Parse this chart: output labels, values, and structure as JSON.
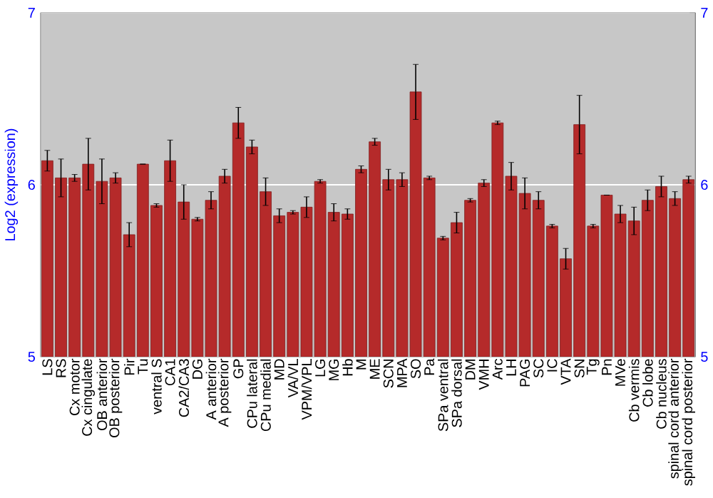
{
  "chart_data": {
    "type": "bar",
    "ylabel": "Log2 (expression)",
    "categories": [
      "LS",
      "RS",
      "Cx motor",
      "Cx cingulate",
      "OB anterior",
      "OB posterior",
      "Pir",
      "Tu",
      "ventral S",
      "CA1",
      "CA2/CA3",
      "DG",
      "A anterior",
      "A posterior",
      "GP",
      "CPu lateral",
      "CPu medial",
      "MD",
      "VA/VL",
      "VPM/VPL",
      "LG",
      "MG",
      "Hb",
      "M",
      "ME",
      "SCN",
      "MPA",
      "SO",
      "Pa",
      "SPa ventral",
      "SPa dorsal",
      "DM",
      "VMH",
      "Arc",
      "LH",
      "PAG",
      "SC",
      "IC",
      "VTA",
      "SN",
      "Tg",
      "Pn",
      "MVe",
      "Cb vermis",
      "Cb lobe",
      "Cb nucleus",
      "spinal cord anterior",
      "spinal cord posterior"
    ],
    "values": [
      6.14,
      6.04,
      6.04,
      6.12,
      6.02,
      6.04,
      5.71,
      6.12,
      5.88,
      6.14,
      5.9,
      5.8,
      5.91,
      6.05,
      6.36,
      6.22,
      5.96,
      5.82,
      5.84,
      5.87,
      6.02,
      5.84,
      5.83,
      6.09,
      6.25,
      6.03,
      6.03,
      6.54,
      6.04,
      5.69,
      5.78,
      5.91,
      6.01,
      6.36,
      6.05,
      5.95,
      5.91,
      5.76,
      5.57,
      6.35,
      5.76,
      5.94,
      5.83,
      5.79,
      5.91,
      5.99,
      5.92,
      6.03
    ],
    "errors": [
      0.06,
      0.11,
      0.02,
      0.15,
      0.13,
      0.03,
      0.07,
      null,
      0.01,
      0.12,
      0.1,
      0.01,
      0.05,
      0.04,
      0.09,
      0.04,
      0.08,
      0.04,
      0.01,
      0.06,
      0.01,
      0.05,
      0.03,
      0.02,
      0.02,
      0.06,
      0.04,
      0.16,
      0.01,
      0.01,
      0.06,
      0.01,
      0.02,
      0.01,
      0.08,
      0.09,
      0.05,
      0.01,
      0.06,
      0.17,
      0.01,
      null,
      0.05,
      0.08,
      0.06,
      0.06,
      0.04,
      0.02
    ],
    "color": "#b52a2a",
    "ylim": [
      5,
      7
    ],
    "yticks": [
      5,
      6,
      7
    ],
    "y2lim": [
      5,
      7
    ],
    "y2ticks": [
      5,
      6,
      7
    ],
    "grid": "y"
  }
}
